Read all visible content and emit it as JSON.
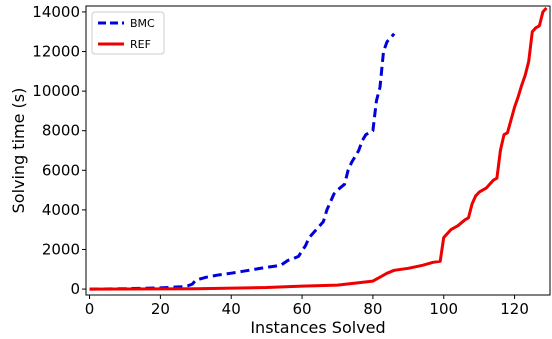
{
  "chart_data": {
    "type": "line",
    "xlabel": "Instances Solved",
    "ylabel": "Solving time (s)",
    "xlim": [
      -1,
      130
    ],
    "ylim": [
      -300,
      14300
    ],
    "xticks": [
      0,
      20,
      40,
      60,
      80,
      100,
      120
    ],
    "yticks": [
      0,
      2000,
      4000,
      6000,
      8000,
      10000,
      12000,
      14000
    ],
    "grid": false,
    "legend_position": "top-left",
    "series": [
      {
        "name": "BMC",
        "color": "#0000dd",
        "style": "dashed",
        "x": [
          0,
          10,
          20,
          26,
          28,
          29,
          30,
          33,
          36,
          40,
          45,
          50,
          54,
          56,
          57,
          59,
          61,
          62,
          64,
          66,
          67,
          68,
          69,
          70,
          72,
          73,
          74,
          76,
          77,
          78,
          80,
          81,
          82,
          83,
          84,
          86
        ],
        "y": [
          0,
          20,
          60,
          120,
          180,
          250,
          450,
          600,
          700,
          800,
          950,
          1100,
          1200,
          1450,
          1500,
          1650,
          2200,
          2600,
          3000,
          3400,
          4000,
          4400,
          4800,
          5000,
          5300,
          6000,
          6400,
          7000,
          7500,
          7800,
          8000,
          9500,
          10200,
          12000,
          12500,
          12900
        ]
      },
      {
        "name": "REF",
        "color": "#ee0000",
        "style": "solid",
        "x": [
          0,
          30,
          50,
          60,
          70,
          75,
          80,
          84,
          86,
          90,
          94,
          97,
          99,
          100,
          102,
          104,
          106,
          107,
          108,
          109,
          110,
          112,
          114,
          115,
          116,
          117,
          118,
          120,
          121,
          122,
          123,
          124,
          125,
          126,
          127,
          128,
          129
        ],
        "y": [
          0,
          20,
          80,
          150,
          200,
          300,
          400,
          800,
          950,
          1050,
          1200,
          1350,
          1400,
          2600,
          3000,
          3200,
          3500,
          3600,
          4300,
          4700,
          4900,
          5100,
          5500,
          5600,
          7000,
          7800,
          7900,
          9200,
          9700,
          10300,
          10800,
          11500,
          13000,
          13200,
          13300,
          14000,
          14200
        ]
      }
    ]
  }
}
